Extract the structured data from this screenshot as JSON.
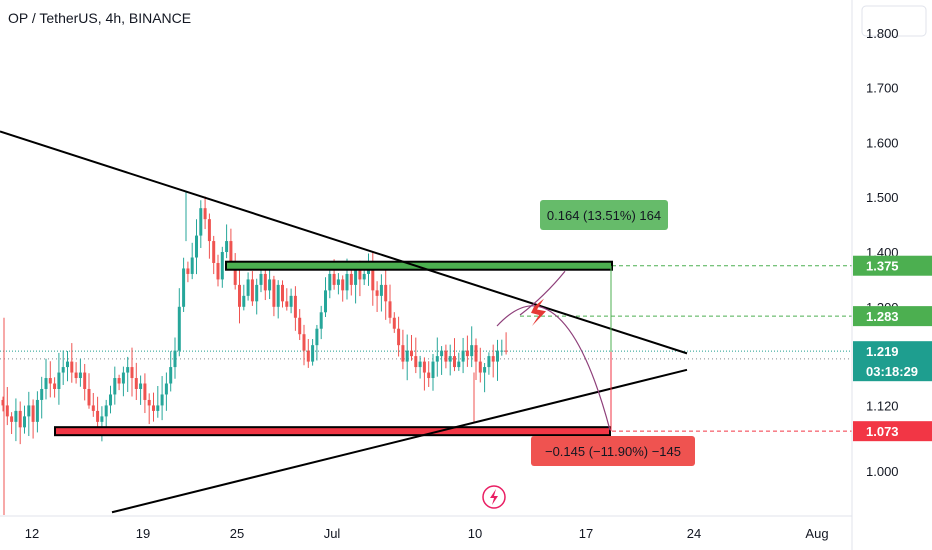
{
  "header": {
    "title": "OP / TetherUS, 4h, BINANCE"
  },
  "colors": {
    "up": "#26a69a",
    "down": "#ef5350",
    "green_zone": "#4caf50",
    "red_zone": "#f23645",
    "curve": "#8e3f7a",
    "line": "#131722",
    "current": "#1e9e8f"
  },
  "chart_data": {
    "type": "candlestick",
    "ylim": [
      0.92,
      1.86
    ],
    "y_ticks": [
      "1.800",
      "1.700",
      "1.600",
      "1.500",
      "1.400",
      "1.300",
      "1.120",
      "1.000"
    ],
    "y_tick_values": [
      1.8,
      1.7,
      1.6,
      1.5,
      1.4,
      1.3,
      1.12,
      1.0
    ],
    "x_ticks": [
      "12",
      "19",
      "25",
      "Jul",
      "10",
      "17",
      "24",
      "Aug"
    ],
    "price_labels": [
      {
        "value": 1.375,
        "text": "1.375",
        "color": "#4caf50"
      },
      {
        "value": 1.283,
        "text": "1.283",
        "color": "#4caf50"
      },
      {
        "value": 1.219,
        "text": "1.219",
        "color": "#1e9e8f",
        "sub": "03:18:29"
      },
      {
        "value": 1.073,
        "text": "1.073",
        "color": "#f23645"
      }
    ],
    "measure_up": {
      "text": "0.164 (13.51%) 164",
      "from": 1.211,
      "to": 1.375
    },
    "measure_down": {
      "text": "−0.145 (−11.90%) −145",
      "from": 1.218,
      "to": 1.073
    },
    "zones": [
      {
        "name": "resistance",
        "value": 1.375,
        "color": "#4caf50"
      },
      {
        "name": "support",
        "value": 1.073,
        "color": "#f23645"
      }
    ],
    "trendlines": [
      {
        "name": "upper",
        "from": [
          -2,
          1.62
        ],
        "to": [
          55,
          1.215
        ]
      },
      {
        "name": "lower",
        "from": [
          8,
          0.925
        ],
        "to": [
          55,
          1.185
        ]
      }
    ],
    "candles_close": [
      1.12,
      1.1,
      1.09,
      1.11,
      1.08,
      1.1,
      1.12,
      1.09,
      1.13,
      1.15,
      1.17,
      1.16,
      1.15,
      1.18,
      1.19,
      1.2,
      1.18,
      1.17,
      1.18,
      1.15,
      1.12,
      1.11,
      1.09,
      1.1,
      1.12,
      1.14,
      1.17,
      1.16,
      1.18,
      1.19,
      1.17,
      1.15,
      1.16,
      1.13,
      1.12,
      1.11,
      1.12,
      1.14,
      1.16,
      1.19,
      1.22,
      1.3,
      1.37,
      1.36,
      1.39,
      1.43,
      1.48,
      1.46,
      1.42,
      1.38,
      1.35,
      1.4,
      1.42,
      1.38,
      1.34,
      1.3,
      1.32,
      1.35,
      1.31,
      1.34,
      1.36,
      1.33,
      1.35,
      1.3,
      1.34,
      1.31,
      1.3,
      1.32,
      1.28,
      1.25,
      1.22,
      1.2,
      1.23,
      1.26,
      1.29,
      1.33,
      1.36,
      1.34,
      1.35,
      1.33,
      1.36,
      1.34,
      1.37,
      1.35,
      1.36,
      1.38,
      1.33,
      1.32,
      1.34,
      1.31,
      1.28,
      1.26,
      1.23,
      1.2,
      1.22,
      1.21,
      1.19,
      1.2,
      1.18,
      1.17,
      1.2,
      1.21,
      1.22,
      1.2,
      1.21,
      1.19,
      1.2,
      1.22,
      1.21,
      1.23,
      1.2,
      1.18,
      1.19,
      1.21,
      1.2,
      1.22,
      1.22,
      1.219
    ]
  }
}
